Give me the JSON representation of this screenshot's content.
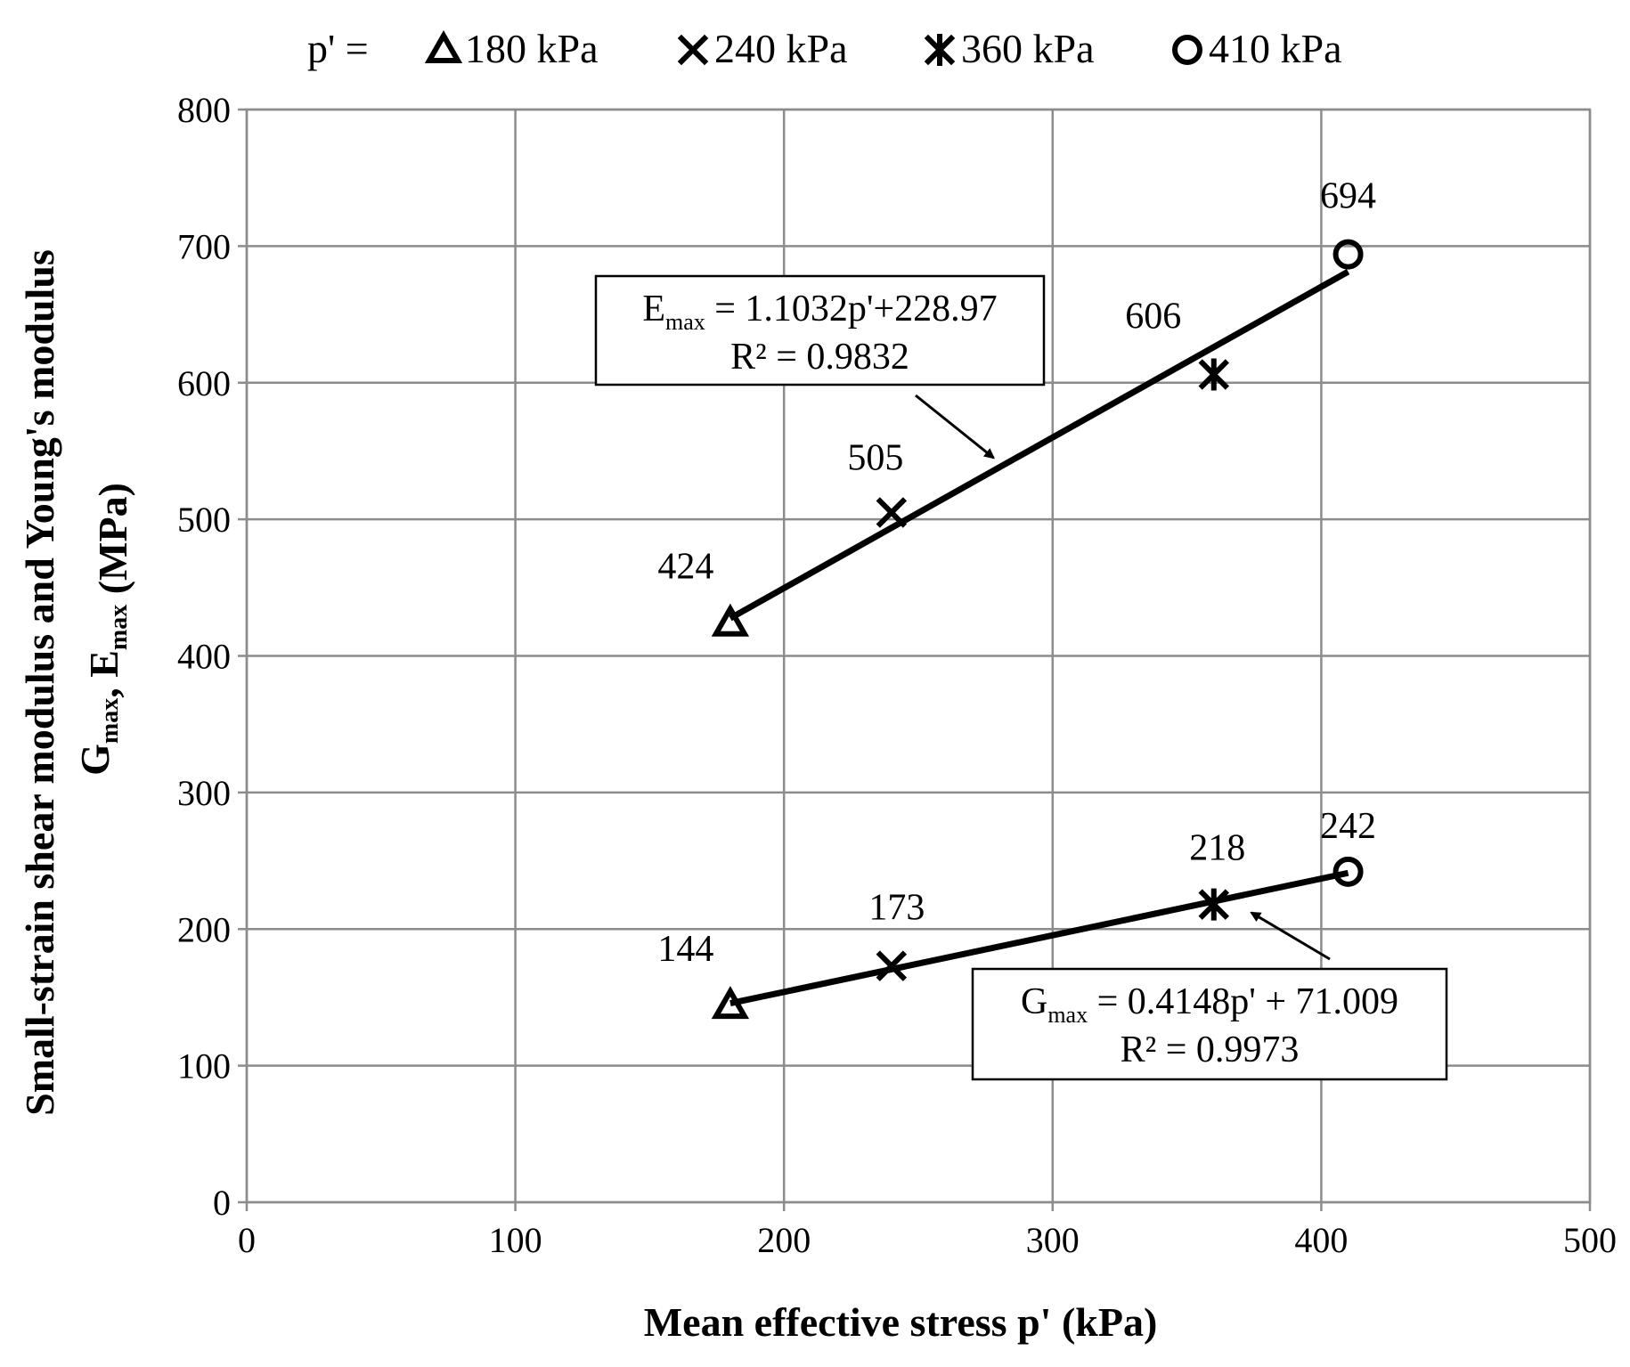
{
  "chart_data": {
    "type": "scatter",
    "legend": {
      "prefix": "p' =",
      "placement": "top",
      "entries": [
        {
          "label": "180 kPa",
          "marker": "triangle"
        },
        {
          "label": "240 kPa",
          "marker": "x"
        },
        {
          "label": "360 kPa",
          "marker": "asterisk"
        },
        {
          "label": "410 kPa",
          "marker": "circle"
        }
      ]
    },
    "xlabel": "Mean effective stress p' (kPa)",
    "ylabel": {
      "line1": "Small-strain shear modulus and Young's modulus",
      "line2_parts": [
        {
          "text": "G",
          "sub": "max"
        },
        {
          "text": ", E",
          "sub": "max"
        },
        {
          "text": " (MPa)",
          "sub": ""
        }
      ]
    },
    "xlim": [
      0,
      500
    ],
    "ylim": [
      0,
      800
    ],
    "xticks": [
      0,
      100,
      200,
      300,
      400,
      500
    ],
    "yticks": [
      0,
      100,
      200,
      300,
      400,
      500,
      600,
      700,
      800
    ],
    "grid": true,
    "series": [
      {
        "name": "Emax",
        "points": [
          {
            "x": 180,
            "y": 424,
            "marker": "triangle",
            "label": "424"
          },
          {
            "x": 240,
            "y": 505,
            "marker": "x",
            "label": "505"
          },
          {
            "x": 360,
            "y": 606,
            "marker": "asterisk",
            "label": "606"
          },
          {
            "x": 410,
            "y": 694,
            "marker": "circle",
            "label": "694"
          }
        ],
        "trendline": {
          "slope": 1.1032,
          "intercept": 228.97,
          "x_from": 180,
          "x_to": 410
        },
        "equation": {
          "symbol": "E",
          "sub": "max",
          "rhs": " = 1.1032p'+228.97",
          "r2": "R² = 0.9832"
        },
        "arrow_target": {
          "x": 278,
          "y": 545
        }
      },
      {
        "name": "Gmax",
        "points": [
          {
            "x": 180,
            "y": 144,
            "marker": "triangle",
            "label": "144"
          },
          {
            "x": 240,
            "y": 173,
            "marker": "x",
            "label": "173"
          },
          {
            "x": 360,
            "y": 218,
            "marker": "asterisk",
            "label": "218"
          },
          {
            "x": 410,
            "y": 242,
            "marker": "circle",
            "label": "242"
          }
        ],
        "trendline": {
          "slope": 0.4148,
          "intercept": 71.009,
          "x_from": 180,
          "x_to": 410
        },
        "equation": {
          "symbol": "G",
          "sub": "max",
          "rhs": " = 0.4148p' + 71.009",
          "r2": "R² = 0.9973"
        },
        "arrow_target": {
          "x": 374,
          "y": 212
        }
      }
    ]
  }
}
